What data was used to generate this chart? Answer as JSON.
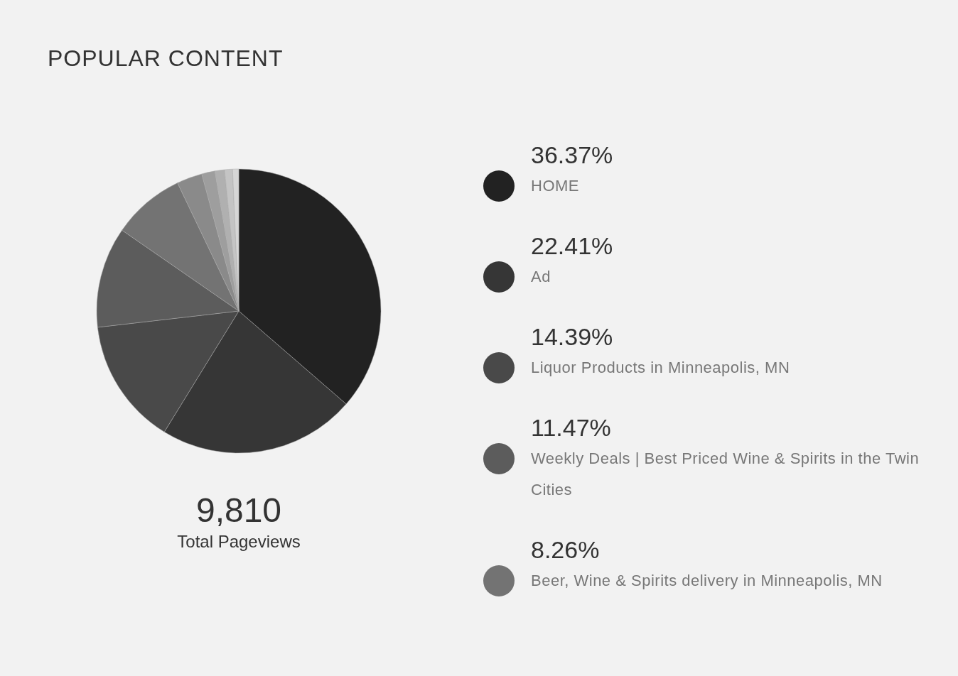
{
  "chart_data": {
    "type": "pie",
    "title": "POPULAR CONTENT",
    "categories": [
      "HOME",
      "Ad",
      "Liquor Products in Minneapolis, MN",
      "Weekly Deals | Best Priced Wine & Spirits in the Twin Cities",
      "Beer, Wine & Spirits delivery in Minneapolis, MN",
      null,
      null,
      null,
      null,
      null
    ],
    "values": [
      36.37,
      22.41,
      14.39,
      11.47,
      8.26,
      2.9,
      1.5,
      1.1,
      0.9,
      0.7
    ],
    "value_labels": [
      "36.37%",
      "22.41%",
      "14.39%",
      "11.47%",
      "8.26%",
      null,
      null,
      null,
      null,
      null
    ],
    "colors": [
      "#222222",
      "#363636",
      "#494949",
      "#5c5c5c",
      "#737373",
      "#8a8a8a",
      "#9e9e9e",
      "#b0b0b0",
      "#c4c4c4",
      "#d6d6d6"
    ],
    "legend": "right",
    "annotations": [
      "9,810",
      "Total Pageviews"
    ]
  }
}
